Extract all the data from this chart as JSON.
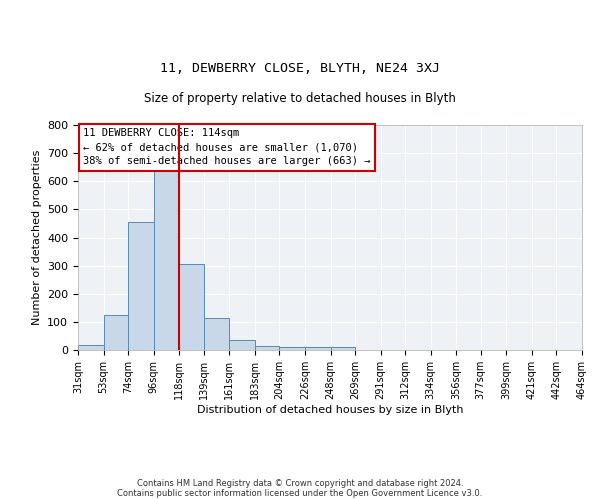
{
  "title_line1": "11, DEWBERRY CLOSE, BLYTH, NE24 3XJ",
  "title_line2": "Size of property relative to detached houses in Blyth",
  "xlabel": "Distribution of detached houses by size in Blyth",
  "ylabel": "Number of detached properties",
  "bin_edges": [
    31,
    53,
    74,
    96,
    118,
    139,
    161,
    183,
    204,
    226,
    248,
    269,
    291,
    312,
    334,
    356,
    377,
    399,
    421,
    442,
    464
  ],
  "bar_heights": [
    17,
    125,
    455,
    660,
    305,
    115,
    35,
    15,
    10,
    10,
    10,
    0,
    0,
    0,
    0,
    0,
    0,
    0,
    0,
    0
  ],
  "bar_color": "#c8d8e8",
  "bar_edge_color": "#5a8ab0",
  "red_line_x": 118,
  "ylim": [
    0,
    800
  ],
  "yticks": [
    0,
    100,
    200,
    300,
    400,
    500,
    600,
    700,
    800
  ],
  "annotation_text": "11 DEWBERRY CLOSE: 114sqm\n← 62% of detached houses are smaller (1,070)\n38% of semi-detached houses are larger (663) →",
  "annotation_box_color": "#ffffff",
  "annotation_border_color": "#cc0000",
  "footer_text1": "Contains HM Land Registry data © Crown copyright and database right 2024.",
  "footer_text2": "Contains public sector information licensed under the Open Government Licence v3.0.",
  "bg_color": "#eef2f7",
  "grid_color": "#ffffff",
  "fig_width": 6.0,
  "fig_height": 5.0,
  "dpi": 100
}
